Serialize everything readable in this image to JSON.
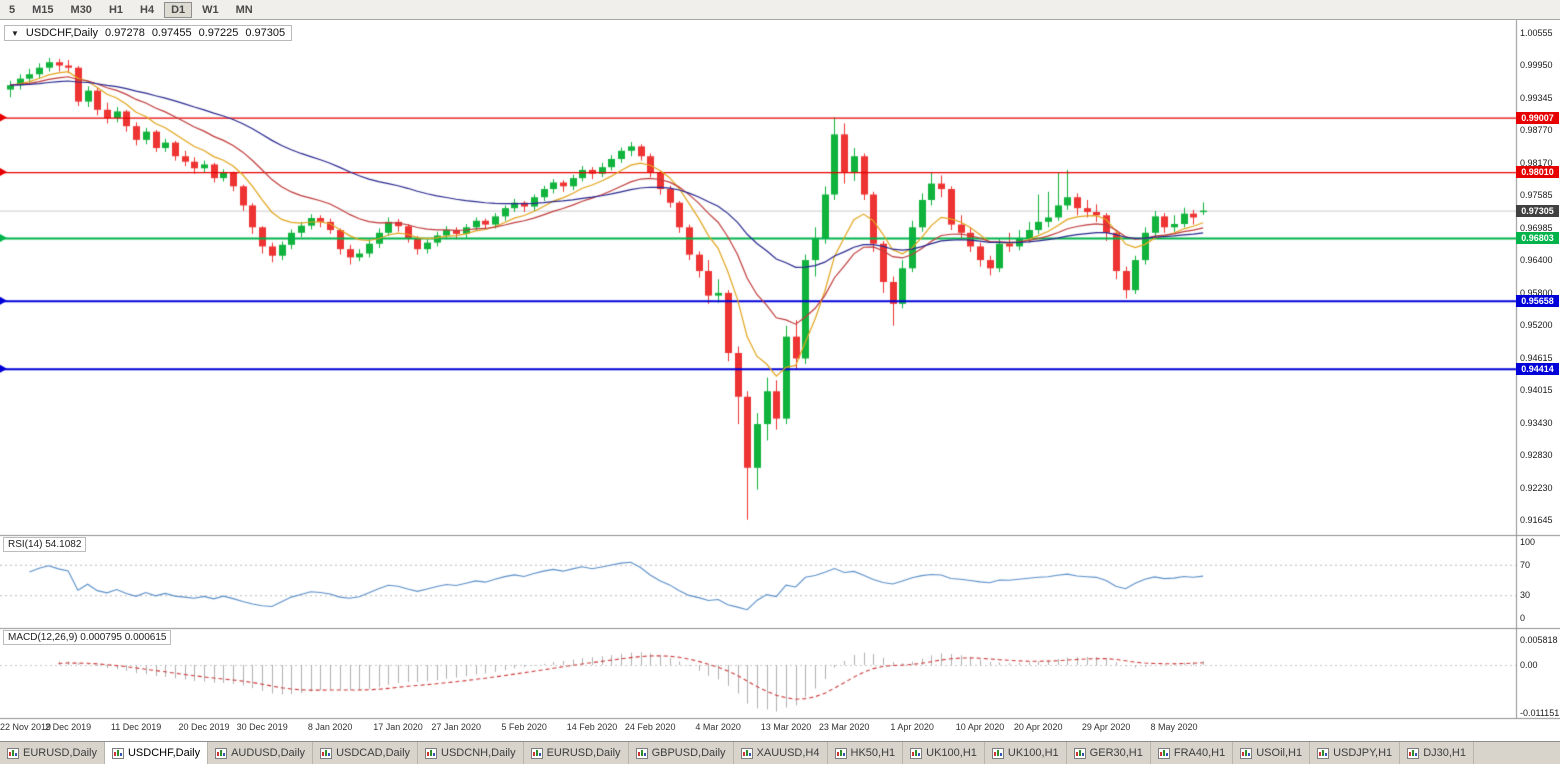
{
  "toolbar": {
    "timeframes": [
      "5",
      "M15",
      "M30",
      "H1",
      "H4",
      "D1",
      "W1",
      "MN"
    ],
    "active": "D1"
  },
  "chart_title": {
    "symbol_period": "USDCHF,Daily",
    "open": "0.97278",
    "high": "0.97455",
    "low": "0.97225",
    "close": "0.97305"
  },
  "chart_data": {
    "type": "candlestick",
    "symbol": "USDCHF",
    "timeframe": "Daily",
    "bull_color": "#10b33c",
    "bear_color": "#ee3333",
    "y_axis": {
      "top_value": 1.00555,
      "bottom_value": 0.91645,
      "labels": [
        "1.00555",
        "0.99950",
        "0.99345",
        "0.98770",
        "0.98170",
        "0.97585",
        "0.96985",
        "0.96400",
        "0.95800",
        "0.95200",
        "0.94615",
        "0.94015",
        "0.93430",
        "0.92830",
        "0.92230",
        "0.91645"
      ]
    },
    "x_labels": [
      {
        "i": 0,
        "t": "22 Nov 2019"
      },
      {
        "i": 6,
        "t": "2 Dec 2019"
      },
      {
        "i": 13,
        "t": "11 Dec 2019"
      },
      {
        "i": 20,
        "t": "20 Dec 2019"
      },
      {
        "i": 26,
        "t": "30 Dec 2019"
      },
      {
        "i": 33,
        "t": "8 Jan 2020"
      },
      {
        "i": 40,
        "t": "17 Jan 2020"
      },
      {
        "i": 46,
        "t": "27 Jan 2020"
      },
      {
        "i": 53,
        "t": "5 Feb 2020"
      },
      {
        "i": 60,
        "t": "14 Feb 2020"
      },
      {
        "i": 66,
        "t": "24 Feb 2020"
      },
      {
        "i": 73,
        "t": "4 Mar 2020"
      },
      {
        "i": 80,
        "t": "13 Mar 2020"
      },
      {
        "i": 86,
        "t": "23 Mar 2020"
      },
      {
        "i": 93,
        "t": "1 Apr 2020"
      },
      {
        "i": 100,
        "t": "10 Apr 2020"
      },
      {
        "i": 106,
        "t": "20 Apr 2020"
      },
      {
        "i": 113,
        "t": "29 Apr 2020"
      },
      {
        "i": 120,
        "t": "8 May 2020"
      }
    ],
    "hlines": [
      {
        "value": 0.99007,
        "label": "0.99007",
        "color": "#e60000",
        "width": 1.4
      },
      {
        "value": 0.9801,
        "label": "0.98010",
        "color": "#e60000",
        "width": 1.4
      },
      {
        "value": 0.96803,
        "label": "0.96803",
        "color": "#00b44b",
        "width": 2
      },
      {
        "value": 0.95658,
        "label": "0.95658",
        "color": "#0000d8",
        "width": 2
      },
      {
        "value": 0.94414,
        "label": "0.94414",
        "color": "#0000d8",
        "width": 2
      }
    ],
    "current_price": {
      "value": 0.97305,
      "label": "0.97305",
      "tag_color": "#404040"
    },
    "overlays": [
      {
        "name": "ma-fast",
        "period": 8,
        "color": "#e2a51d"
      },
      {
        "name": "ma-mid",
        "period": 17,
        "color": "#c03b3b"
      },
      {
        "name": "ma-slow",
        "period": 40,
        "color": "#28288f"
      }
    ],
    "indicators": [
      {
        "name": "RSI",
        "label": "RSI(14) 54.1082",
        "period": 14,
        "value": 54.1082,
        "color": "#5b8fc9",
        "levels": [
          70,
          30
        ],
        "range": [
          0,
          100
        ],
        "axis_labels": [
          {
            "t": "100",
            "v": 100
          },
          {
            "t": "70",
            "v": 70
          },
          {
            "t": "30",
            "v": 30
          },
          {
            "t": "0",
            "v": 0
          }
        ]
      },
      {
        "name": "MACD",
        "label": "MACD(12,26,9) 0.000795 0.000615",
        "params": [
          12,
          26,
          9
        ],
        "macd_value": 0.000795,
        "signal_value": 0.000615,
        "histogram_color": "#b0b0b0",
        "signal_color": "#cc3b3b",
        "axis_labels": [
          {
            "t": "0.005818",
            "v": 0.005818
          },
          {
            "t": "0.00",
            "v": 0
          },
          {
            "t": "-0.011151",
            "v": -0.011151
          }
        ]
      }
    ],
    "ohlc": [
      [
        0.9952,
        0.9968,
        0.9938,
        0.996
      ],
      [
        0.996,
        0.998,
        0.9952,
        0.9972
      ],
      [
        0.9972,
        0.999,
        0.9965,
        0.998
      ],
      [
        0.998,
        1.0,
        0.9972,
        0.9992
      ],
      [
        0.9992,
        1.001,
        0.9985,
        1.0002
      ],
      [
        1.0002,
        1.0008,
        0.9985,
        0.9996
      ],
      [
        0.9996,
        1.0006,
        0.9982,
        0.9992
      ],
      [
        0.9992,
        0.9995,
        0.9922,
        0.993
      ],
      [
        0.993,
        0.9958,
        0.992,
        0.995
      ],
      [
        0.995,
        0.9955,
        0.9905,
        0.9915
      ],
      [
        0.9915,
        0.9928,
        0.989,
        0.99
      ],
      [
        0.99,
        0.992,
        0.9892,
        0.9912
      ],
      [
        0.9912,
        0.9915,
        0.9875,
        0.9885
      ],
      [
        0.9885,
        0.9892,
        0.985,
        0.986
      ],
      [
        0.986,
        0.9882,
        0.9852,
        0.9875
      ],
      [
        0.9875,
        0.9878,
        0.9838,
        0.9845
      ],
      [
        0.9845,
        0.9862,
        0.9838,
        0.9855
      ],
      [
        0.9855,
        0.9858,
        0.9822,
        0.983
      ],
      [
        0.983,
        0.984,
        0.9812,
        0.982
      ],
      [
        0.982,
        0.9828,
        0.9798,
        0.9808
      ],
      [
        0.9808,
        0.9822,
        0.98,
        0.9815
      ],
      [
        0.9815,
        0.9818,
        0.9782,
        0.979
      ],
      [
        0.979,
        0.9806,
        0.9784,
        0.98
      ],
      [
        0.98,
        0.9802,
        0.9766,
        0.9775
      ],
      [
        0.9775,
        0.9778,
        0.973,
        0.974
      ],
      [
        0.974,
        0.9744,
        0.9688,
        0.97
      ],
      [
        0.97,
        0.9702,
        0.9652,
        0.9665
      ],
      [
        0.9665,
        0.9672,
        0.9636,
        0.9648
      ],
      [
        0.9648,
        0.9674,
        0.964,
        0.9668
      ],
      [
        0.9668,
        0.9696,
        0.966,
        0.969
      ],
      [
        0.969,
        0.971,
        0.9682,
        0.9703
      ],
      [
        0.9703,
        0.9724,
        0.9696,
        0.9717
      ],
      [
        0.9717,
        0.9722,
        0.97,
        0.971
      ],
      [
        0.971,
        0.9716,
        0.9688,
        0.9695
      ],
      [
        0.9695,
        0.9698,
        0.965,
        0.966
      ],
      [
        0.966,
        0.9668,
        0.9632,
        0.9645
      ],
      [
        0.9645,
        0.966,
        0.9638,
        0.9652
      ],
      [
        0.9652,
        0.9678,
        0.9645,
        0.967
      ],
      [
        0.967,
        0.9698,
        0.9662,
        0.969
      ],
      [
        0.969,
        0.9718,
        0.9684,
        0.971
      ],
      [
        0.971,
        0.9715,
        0.9692,
        0.9702
      ],
      [
        0.9702,
        0.9706,
        0.9672,
        0.968
      ],
      [
        0.968,
        0.9684,
        0.965,
        0.966
      ],
      [
        0.966,
        0.9678,
        0.9652,
        0.9672
      ],
      [
        0.9672,
        0.9692,
        0.9665,
        0.9685
      ],
      [
        0.9685,
        0.9702,
        0.9678,
        0.9695
      ],
      [
        0.9695,
        0.97,
        0.9678,
        0.9688
      ],
      [
        0.9688,
        0.9706,
        0.968,
        0.97
      ],
      [
        0.97,
        0.9718,
        0.9694,
        0.9712
      ],
      [
        0.9712,
        0.9716,
        0.9695,
        0.9705
      ],
      [
        0.9705,
        0.9726,
        0.9698,
        0.972
      ],
      [
        0.972,
        0.974,
        0.9712,
        0.9735
      ],
      [
        0.9735,
        0.9752,
        0.9728,
        0.9745
      ],
      [
        0.9745,
        0.9748,
        0.9728,
        0.9738
      ],
      [
        0.9738,
        0.976,
        0.973,
        0.9755
      ],
      [
        0.9755,
        0.9776,
        0.9748,
        0.977
      ],
      [
        0.977,
        0.9788,
        0.9762,
        0.9782
      ],
      [
        0.9782,
        0.9786,
        0.9765,
        0.9775
      ],
      [
        0.9775,
        0.9796,
        0.9768,
        0.979
      ],
      [
        0.979,
        0.9812,
        0.9784,
        0.9805
      ],
      [
        0.9805,
        0.981,
        0.9788,
        0.9798
      ],
      [
        0.9798,
        0.9818,
        0.9792,
        0.981
      ],
      [
        0.981,
        0.9832,
        0.9804,
        0.9825
      ],
      [
        0.9825,
        0.9846,
        0.9818,
        0.984
      ],
      [
        0.984,
        0.9856,
        0.983,
        0.9848
      ],
      [
        0.9848,
        0.9852,
        0.9822,
        0.983
      ],
      [
        0.983,
        0.9835,
        0.9792,
        0.98
      ],
      [
        0.98,
        0.9804,
        0.976,
        0.977
      ],
      [
        0.977,
        0.9776,
        0.9736,
        0.9745
      ],
      [
        0.9745,
        0.9748,
        0.969,
        0.97
      ],
      [
        0.97,
        0.9705,
        0.964,
        0.965
      ],
      [
        0.965,
        0.9656,
        0.9608,
        0.962
      ],
      [
        0.962,
        0.964,
        0.956,
        0.9575
      ],
      [
        0.9575,
        0.9605,
        0.9562,
        0.958
      ],
      [
        0.958,
        0.9585,
        0.9455,
        0.947
      ],
      [
        0.947,
        0.9482,
        0.934,
        0.939
      ],
      [
        0.939,
        0.94,
        0.9165,
        0.926
      ],
      [
        0.926,
        0.936,
        0.922,
        0.934
      ],
      [
        0.934,
        0.9425,
        0.931,
        0.94
      ],
      [
        0.94,
        0.942,
        0.933,
        0.935
      ],
      [
        0.935,
        0.952,
        0.934,
        0.95
      ],
      [
        0.95,
        0.953,
        0.944,
        0.946
      ],
      [
        0.946,
        0.965,
        0.945,
        0.964
      ],
      [
        0.964,
        0.97,
        0.961,
        0.968
      ],
      [
        0.968,
        0.9775,
        0.967,
        0.976
      ],
      [
        0.976,
        0.9901,
        0.975,
        0.987
      ],
      [
        0.987,
        0.989,
        0.978,
        0.98
      ],
      [
        0.98,
        0.9845,
        0.9785,
        0.983
      ],
      [
        0.983,
        0.9835,
        0.975,
        0.976
      ],
      [
        0.976,
        0.9765,
        0.9655,
        0.967
      ],
      [
        0.967,
        0.9675,
        0.958,
        0.96
      ],
      [
        0.96,
        0.961,
        0.952,
        0.956
      ],
      [
        0.956,
        0.964,
        0.9552,
        0.9625
      ],
      [
        0.9625,
        0.9712,
        0.9618,
        0.97
      ],
      [
        0.97,
        0.9762,
        0.9692,
        0.975
      ],
      [
        0.975,
        0.98,
        0.974,
        0.978
      ],
      [
        0.978,
        0.9795,
        0.9755,
        0.977
      ],
      [
        0.977,
        0.9775,
        0.9695,
        0.9705
      ],
      [
        0.9705,
        0.9722,
        0.968,
        0.969
      ],
      [
        0.969,
        0.97,
        0.9655,
        0.9665
      ],
      [
        0.9665,
        0.9672,
        0.9628,
        0.964
      ],
      [
        0.964,
        0.9648,
        0.9612,
        0.9625
      ],
      [
        0.9625,
        0.968,
        0.9618,
        0.967
      ],
      [
        0.967,
        0.969,
        0.9655,
        0.9665
      ],
      [
        0.9665,
        0.9695,
        0.9658,
        0.968
      ],
      [
        0.968,
        0.971,
        0.9672,
        0.9695
      ],
      [
        0.9695,
        0.976,
        0.9688,
        0.971
      ],
      [
        0.971,
        0.9765,
        0.97,
        0.9718
      ],
      [
        0.9718,
        0.98,
        0.9712,
        0.974
      ],
      [
        0.974,
        0.9805,
        0.9732,
        0.9755
      ],
      [
        0.9755,
        0.9762,
        0.9722,
        0.9735
      ],
      [
        0.9735,
        0.975,
        0.9718,
        0.9728
      ],
      [
        0.9728,
        0.9742,
        0.971,
        0.9722
      ],
      [
        0.9722,
        0.9726,
        0.9675,
        0.969
      ],
      [
        0.969,
        0.9695,
        0.9605,
        0.962
      ],
      [
        0.962,
        0.9628,
        0.957,
        0.9585
      ],
      [
        0.9585,
        0.9648,
        0.9578,
        0.964
      ],
      [
        0.964,
        0.97,
        0.9632,
        0.969
      ],
      [
        0.969,
        0.973,
        0.9682,
        0.972
      ],
      [
        0.972,
        0.9726,
        0.969,
        0.97
      ],
      [
        0.97,
        0.9722,
        0.9692,
        0.9706
      ],
      [
        0.9706,
        0.9736,
        0.97,
        0.9725
      ],
      [
        0.9725,
        0.9732,
        0.9705,
        0.9718
      ],
      [
        0.97278,
        0.97455,
        0.97225,
        0.97305
      ]
    ]
  },
  "tabbar": {
    "tabs": [
      {
        "label": "EURUSD,Daily",
        "active": false
      },
      {
        "label": "USDCHF,Daily",
        "active": true
      },
      {
        "label": "AUDUSD,Daily",
        "active": false
      },
      {
        "label": "USDCAD,Daily",
        "active": false
      },
      {
        "label": "USDCNH,Daily",
        "active": false
      },
      {
        "label": "EURUSD,Daily",
        "active": false
      },
      {
        "label": "GBPUSD,Daily",
        "active": false
      },
      {
        "label": "XAUUSD,H4",
        "active": false
      },
      {
        "label": "HK50,H1",
        "active": false
      },
      {
        "label": "UK100,H1",
        "active": false
      },
      {
        "label": "UK100,H1",
        "active": false
      },
      {
        "label": "GER30,H1",
        "active": false
      },
      {
        "label": "FRA40,H1",
        "active": false
      },
      {
        "label": "USOil,H1",
        "active": false
      },
      {
        "label": "USDJPY,H1",
        "active": false
      },
      {
        "label": "DJ30,H1",
        "active": false
      }
    ]
  }
}
